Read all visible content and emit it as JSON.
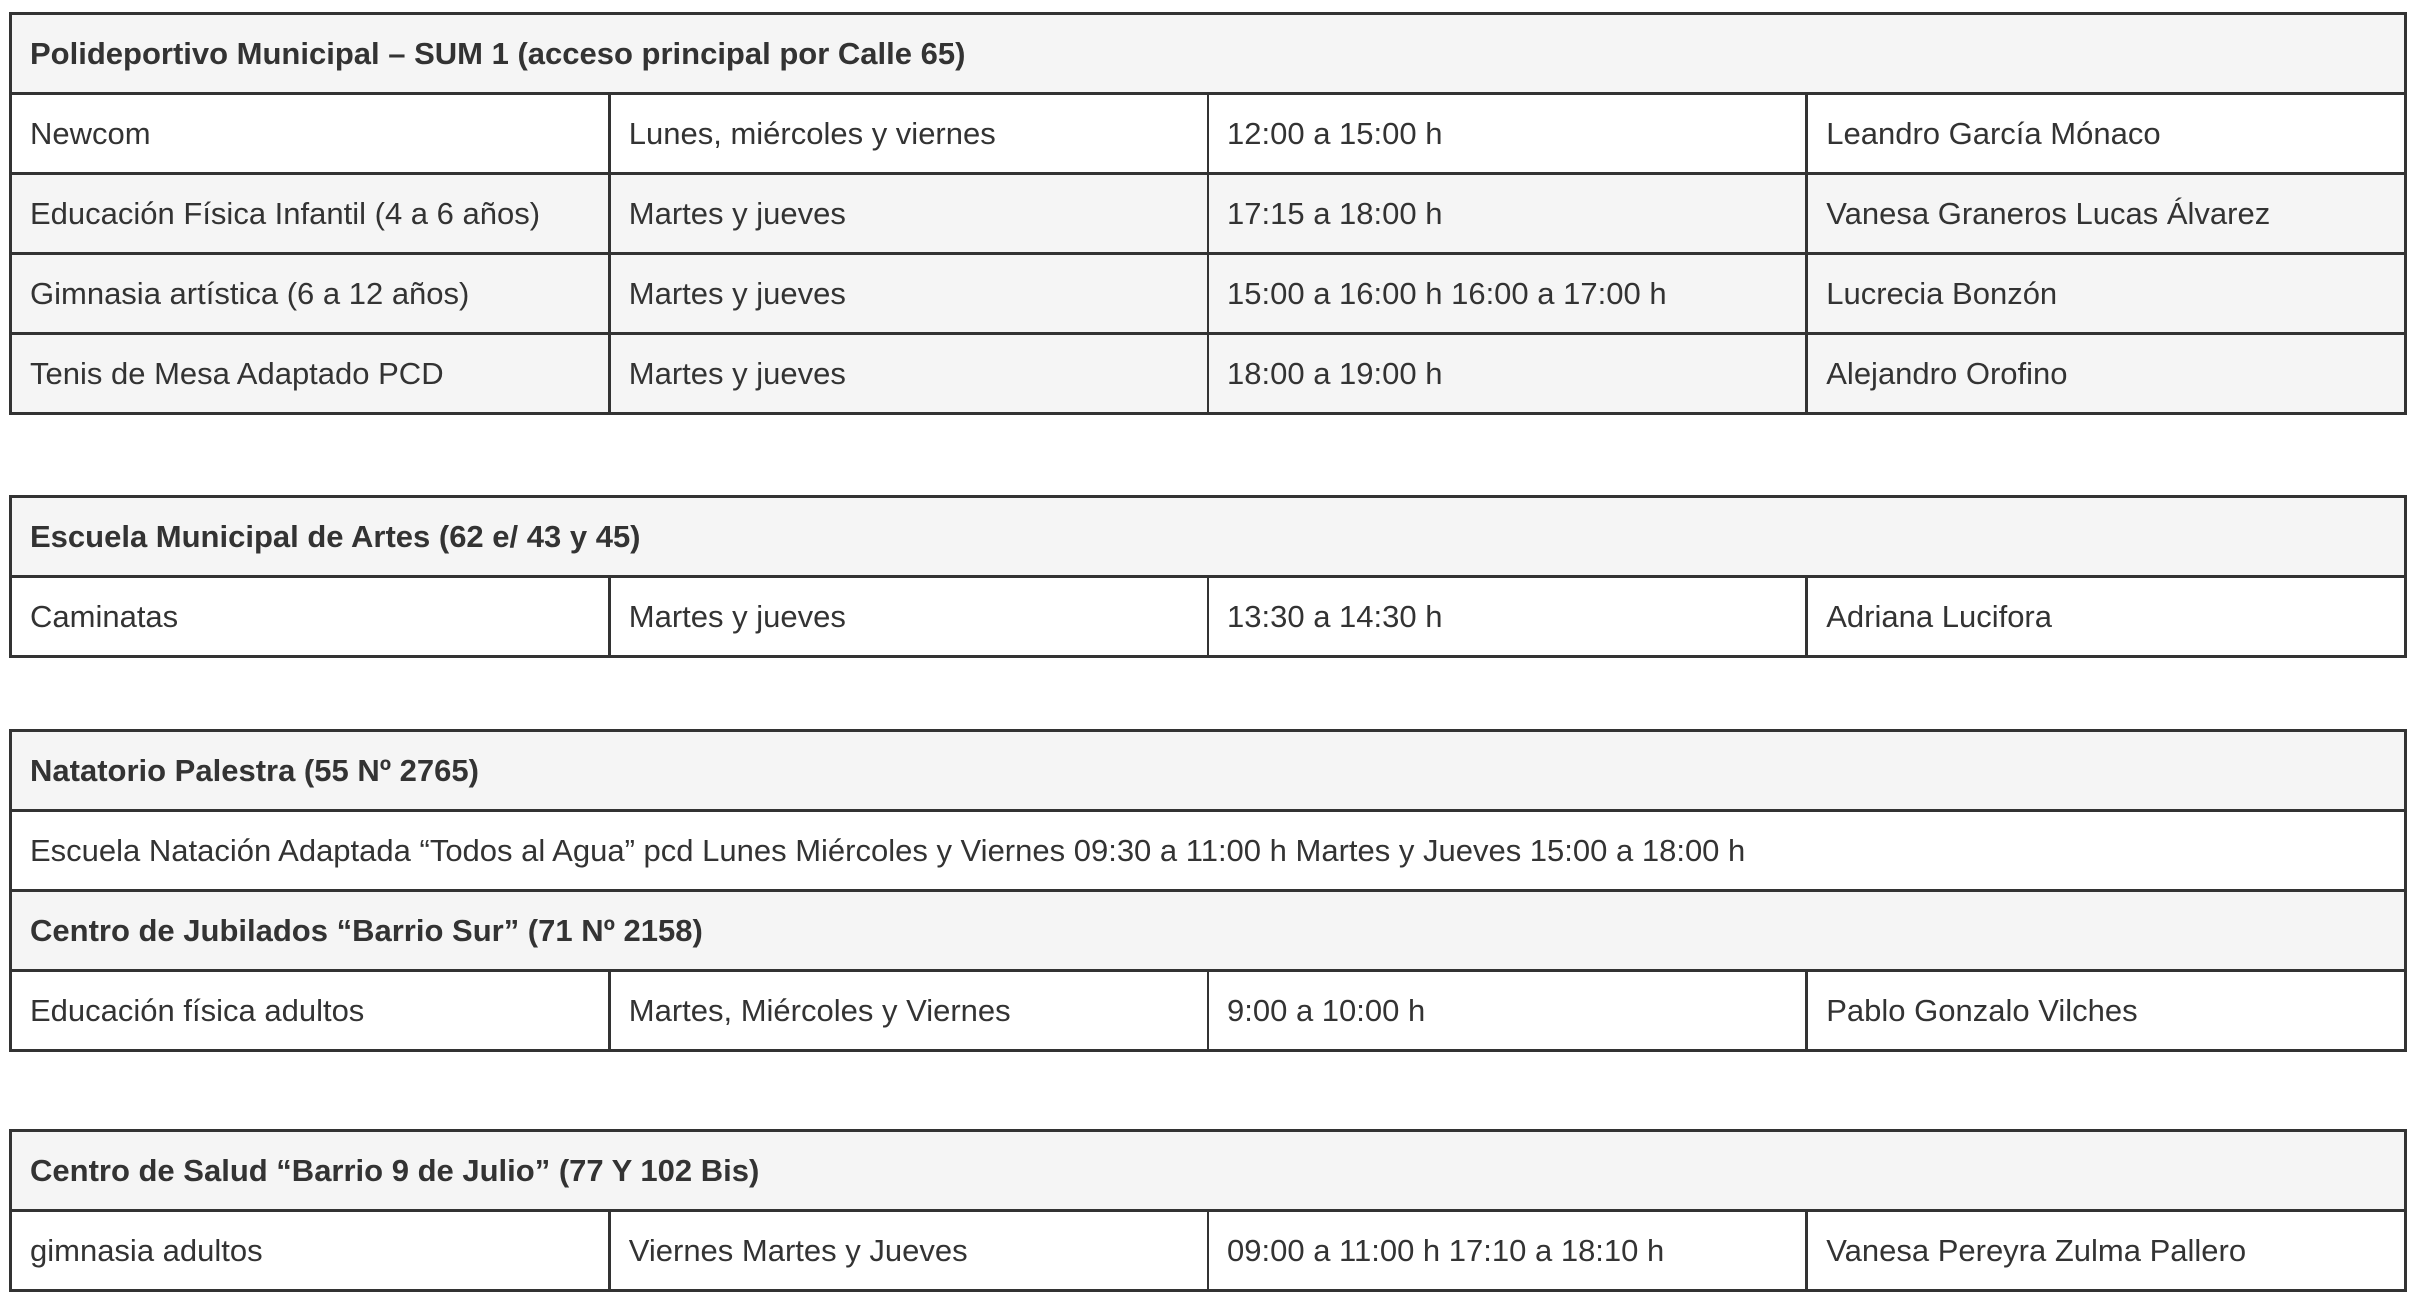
{
  "sections": [
    {
      "title": "Polideportivo  Municipal –  SUM 1 (acceso principal por Calle 65)",
      "rows": [
        [
          "Newcom",
          "Lunes, miércoles y viernes",
          "12:00 a 15:00 h",
          "Leandro García Mónaco"
        ],
        [
          "Educación Física Infantil (4 a 6 años)",
          "Martes y jueves",
          "17:15 a 18:00 h",
          "Vanesa Graneros Lucas Álvarez"
        ],
        [
          "Gimnasia artística (6 a 12 años)",
          "Martes y jueves",
          "15:00 a 16:00 h 16:00 a 17:00 h",
          "Lucrecia Bonzón"
        ],
        [
          "Tenis de Mesa Adaptado PCD",
          "Martes y jueves",
          "18:00 a 19:00 h",
          "Alejandro Orofino"
        ]
      ]
    },
    {
      "title": "Escuela Municipal de Artes  (62 e/ 43 y 45)",
      "rows": [
        [
          "Caminatas",
          "Martes y jueves",
          "13:30 a 14:30 h",
          "Adriana Lucifora"
        ]
      ]
    },
    {
      "title": "Natatorio Palestra  (55 Nº 2765)",
      "full_row": "Escuela Natación Adaptada “Todos al Agua” pcd Lunes Miércoles y Viernes 09:30 a 11:00 h Martes y Jueves 15:00 a 18:00 h",
      "subtitle": "Centro de  Jubilados  “Barrio  Sur”  (71  Nº 2158)",
      "rows": [
        [
          "Educación física adultos",
          "Martes, Miércoles y Viernes",
          "9:00 a 10:00 h",
          "Pablo Gonzalo Vilches"
        ]
      ]
    },
    {
      "title": "Centro de Salud “Barrio 9 de Julio”  (77 Y 102 Bis)",
      "rows": [
        [
          "gimnasia adultos",
          "Viernes Martes y Jueves",
          "09:00 a 11:00 h 17:10 a 18:10 h",
          "Vanesa Pereyra Zulma Pallero"
        ]
      ]
    }
  ]
}
